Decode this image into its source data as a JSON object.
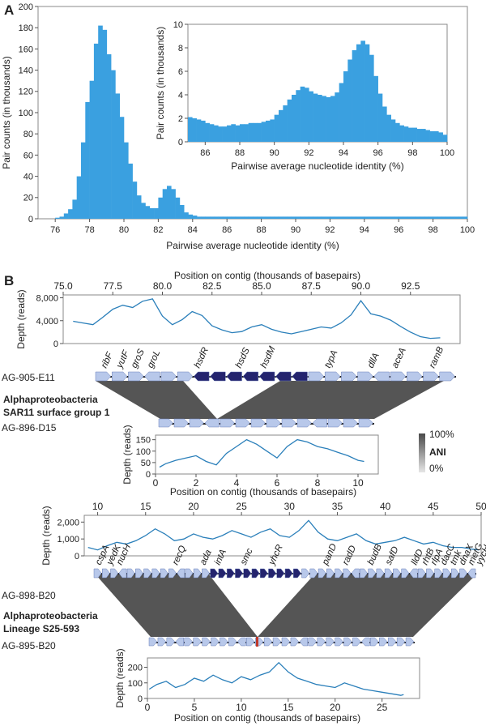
{
  "panel_a": {
    "label": "A"
  },
  "panel_b": {
    "label": "B",
    "top_axis_title": "Position on contig (thousands of basepairs)",
    "bottom_axis_title": "Position on contig (thousands of basepairs)",
    "depth_label": "Depth (reads)",
    "ani": {
      "label": "ANI",
      "max": "100%",
      "min": "0%"
    },
    "pair1": {
      "top_contig": "AG-905-E11",
      "bottom_contig": "AG-896-D15",
      "group_line1": "Alphaproteobacteria",
      "group_line2": "SAR11 surface group 1",
      "genes": [
        "ribF",
        "yutF",
        "groS",
        "groL",
        "hsdR",
        "hsdS",
        "hsdM",
        "typA",
        "dllA",
        "aceA",
        "ramB"
      ]
    },
    "pair2": {
      "top_contig": "AG-898-B20",
      "bottom_contig": "AG-895-B20",
      "group_line1": "Alphaproteobacteria",
      "group_line2": "Lineage S25-593",
      "genes": [
        "cspA",
        "yedK",
        "nucH",
        "recQ",
        "ada",
        "intA",
        "smc",
        "yhcR",
        "panD",
        "radD",
        "budB",
        "safD",
        "lldD",
        "rhtB",
        "rlpA",
        "dacC",
        "tmk",
        "dnaX",
        "metG",
        "yycH",
        "rbn",
        "dmlR"
      ]
    }
  },
  "chart_data": [
    {
      "id": "a_main",
      "type": "bar",
      "xlabel": "Pairwise average nucleotide identity (%)",
      "ylabel": "Pair counts (in thousands)",
      "xlim": [
        75,
        100
      ],
      "ylim": [
        0,
        200
      ],
      "xticks": [
        "76",
        "78",
        "80",
        "82",
        "84",
        "86",
        "88",
        "90",
        "92",
        "94",
        "96",
        "98",
        "100"
      ],
      "yticks": [
        "0",
        "20",
        "40",
        "60",
        "80",
        "100",
        "120",
        "140",
        "160",
        "180",
        "200"
      ],
      "bin_start": 75.0,
      "bin_width": 0.25,
      "values": [
        0,
        0,
        0,
        0,
        1,
        2,
        5,
        9,
        18,
        40,
        72,
        110,
        130,
        165,
        182,
        178,
        155,
        140,
        118,
        96,
        72,
        52,
        35,
        22,
        15,
        12,
        10,
        10,
        20,
        28,
        31,
        28,
        20,
        13,
        6,
        4,
        3,
        2,
        2,
        2,
        2,
        2,
        2,
        2,
        2,
        2,
        2,
        2,
        2,
        2,
        2,
        2,
        2,
        2,
        2,
        2,
        2,
        2,
        2,
        2,
        2,
        2,
        2,
        2,
        2,
        2,
        2,
        2,
        2,
        2,
        2,
        2,
        2,
        2,
        2,
        2,
        2,
        2,
        2,
        2,
        2,
        2,
        2,
        2,
        2,
        2,
        2,
        2,
        2,
        2,
        2,
        2,
        2,
        2,
        2,
        2,
        2,
        2,
        2,
        2
      ]
    },
    {
      "id": "a_inset",
      "type": "bar",
      "xlabel": "Pairwise average nucleotide identity (%)",
      "ylabel": "Pair counts (in thousands)",
      "xlim": [
        85,
        100
      ],
      "ylim": [
        0,
        10
      ],
      "xticks": [
        "86",
        "88",
        "90",
        "92",
        "94",
        "96",
        "98",
        "100"
      ],
      "yticks": [
        "0",
        "2",
        "4",
        "6",
        "8",
        "10"
      ],
      "bin_start": 85.0,
      "bin_width": 0.25,
      "values": [
        2.1,
        2.0,
        1.9,
        1.8,
        1.6,
        1.5,
        1.4,
        1.3,
        1.3,
        1.4,
        1.5,
        1.4,
        1.5,
        1.5,
        1.6,
        1.6,
        1.6,
        1.7,
        1.8,
        1.9,
        2.3,
        2.7,
        3.1,
        3.6,
        4.0,
        4.4,
        4.7,
        4.6,
        4.3,
        4.1,
        4.0,
        3.9,
        3.8,
        3.9,
        4.2,
        5.0,
        6.0,
        7.0,
        7.8,
        8.3,
        8.6,
        8.3,
        7.4,
        5.6,
        4.1,
        3.0,
        2.3,
        1.9,
        1.6,
        1.4,
        1.3,
        1.2,
        1.2,
        1.1,
        1.1,
        1.0,
        0.9,
        0.9,
        0.8,
        0.6
      ]
    },
    {
      "id": "b_depth1",
      "type": "line",
      "xlim": [
        75,
        95
      ],
      "xticks": [
        "75.0",
        "77.5",
        "80.0",
        "82.5",
        "85.0",
        "87.5",
        "90.0",
        "92.5"
      ],
      "ylim": [
        0,
        8500
      ],
      "yticks": [
        "0",
        "4,000",
        "8,000"
      ],
      "ytick_values": [
        0,
        4000,
        8000
      ],
      "x": [
        75.5,
        76.0,
        76.5,
        77.0,
        77.5,
        78.0,
        78.5,
        79.0,
        79.5,
        80.0,
        80.5,
        81.0,
        81.5,
        82.0,
        82.5,
        83.0,
        83.5,
        84.0,
        84.5,
        85.0,
        85.5,
        86.0,
        86.5,
        87.0,
        87.5,
        88.0,
        88.5,
        89.0,
        89.5,
        90.0,
        90.5,
        91.0,
        91.5,
        92.0,
        92.5,
        93.0,
        93.5,
        94.0
      ],
      "y": [
        3900,
        3600,
        3300,
        4600,
        6000,
        6700,
        6300,
        7400,
        7800,
        4800,
        3300,
        4200,
        5600,
        4900,
        3100,
        2400,
        1900,
        2100,
        2900,
        3300,
        2500,
        2000,
        1700,
        2100,
        2500,
        2900,
        2700,
        3600,
        5000,
        7500,
        5200,
        4800,
        4100,
        3000,
        2000,
        1200,
        900,
        1000
      ]
    },
    {
      "id": "b_depth2",
      "type": "line",
      "xlim": [
        0,
        11
      ],
      "xticks": [
        "0",
        "2",
        "4",
        "6",
        "8",
        "10"
      ],
      "ylim": [
        0,
        170
      ],
      "yticks": [
        "0",
        "50",
        "100",
        "150"
      ],
      "ytick_values": [
        0,
        50,
        100,
        150
      ],
      "x": [
        0.2,
        0.5,
        1.0,
        1.5,
        2.0,
        2.5,
        3.0,
        3.5,
        4.0,
        4.5,
        5.0,
        5.5,
        6.0,
        6.5,
        7.0,
        7.5,
        8.0,
        8.5,
        9.0,
        9.5,
        10.0,
        10.3
      ],
      "y": [
        30,
        45,
        60,
        70,
        80,
        55,
        40,
        90,
        120,
        150,
        130,
        100,
        70,
        120,
        150,
        140,
        120,
        110,
        95,
        80,
        60,
        55
      ]
    },
    {
      "id": "b_depth3",
      "type": "line",
      "xlim": [
        8.6,
        50
      ],
      "xticks": [
        "10",
        "15",
        "20",
        "25",
        "30",
        "35",
        "40",
        "45",
        "50"
      ],
      "ylim": [
        0,
        2400
      ],
      "yticks": [
        "0",
        "1,000",
        "2,000"
      ],
      "ytick_values": [
        0,
        1000,
        2000
      ],
      "x": [
        9,
        10,
        11,
        12,
        13,
        14,
        15,
        16,
        17,
        18,
        19,
        20,
        21,
        22,
        23,
        24,
        25,
        26,
        27,
        28,
        29,
        30,
        31,
        32,
        33,
        34,
        35,
        36,
        37,
        38,
        39,
        40,
        41,
        42,
        43,
        44,
        45,
        46,
        47,
        48,
        49,
        49.8
      ],
      "y": [
        500,
        350,
        600,
        800,
        700,
        900,
        1200,
        1600,
        1300,
        900,
        1000,
        1300,
        1100,
        1000,
        1200,
        1500,
        1300,
        1100,
        1400,
        1600,
        1200,
        1100,
        1500,
        2100,
        1400,
        1000,
        900,
        1100,
        1300,
        900,
        700,
        800,
        900,
        1100,
        900,
        700,
        800,
        600,
        500,
        500,
        400,
        350
      ]
    },
    {
      "id": "b_depth4",
      "type": "line",
      "xlim": [
        0,
        29
      ],
      "xticks": [
        "0",
        "5",
        "10",
        "15",
        "20",
        "25"
      ],
      "ylim": [
        0,
        260
      ],
      "yticks": [
        "0",
        "100",
        "200"
      ],
      "ytick_values": [
        0,
        100,
        200
      ],
      "x": [
        0.2,
        1,
        2,
        3,
        4,
        5,
        6,
        7,
        8,
        9,
        10,
        11,
        12,
        13,
        14,
        15,
        16,
        17,
        18,
        19,
        20,
        21,
        22,
        23,
        24,
        25,
        26,
        27,
        27.3
      ],
      "y": [
        60,
        90,
        110,
        70,
        90,
        130,
        110,
        150,
        120,
        100,
        140,
        120,
        150,
        170,
        230,
        170,
        130,
        110,
        90,
        80,
        70,
        100,
        80,
        60,
        50,
        40,
        30,
        20,
        25
      ]
    }
  ]
}
